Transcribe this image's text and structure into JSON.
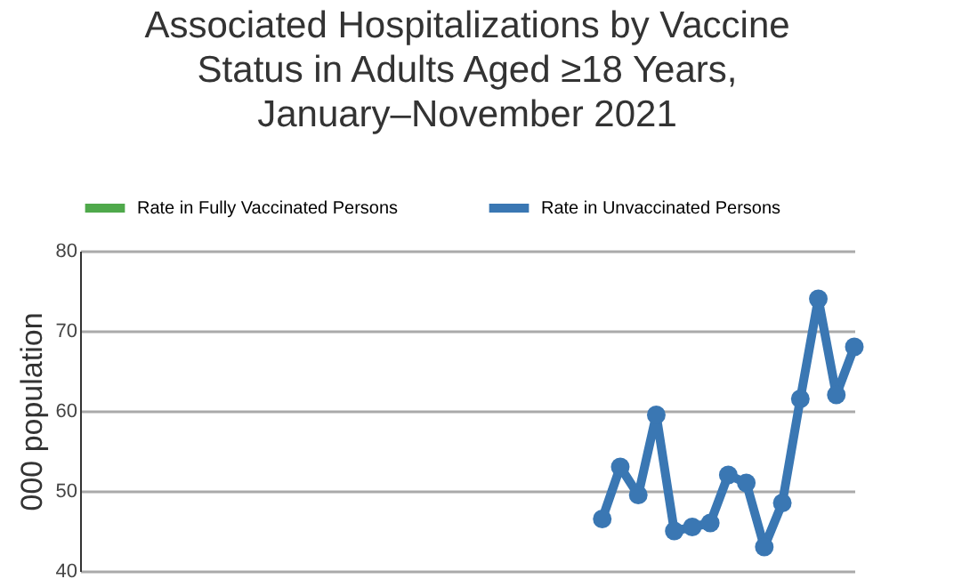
{
  "chart_data": {
    "type": "line",
    "title": "Associated Hospitalizations by Vaccine Status in Adults Aged ≥18 Years, January–November 2021",
    "ylabel": "000 population",
    "categories": [
      null,
      null,
      null,
      null,
      null,
      null,
      null,
      null,
      null,
      null,
      null,
      null,
      null,
      null,
      null,
      null,
      null,
      null,
      null,
      null,
      null,
      null,
      null,
      null,
      null,
      null,
      null,
      null,
      null,
      null,
      null,
      null,
      null,
      null,
      null,
      null,
      null,
      null,
      null,
      null,
      null,
      null,
      null,
      null
    ],
    "series": [
      {
        "name": "Rate in Fully Vaccinated Persons",
        "color": "#4fa94b",
        "values": [
          null,
          null,
          null,
          null,
          null,
          null,
          null,
          null,
          null,
          null,
          null,
          null,
          null,
          null,
          null,
          null,
          null,
          null,
          null,
          null,
          null,
          null,
          null,
          null,
          null,
          null,
          null,
          null,
          null,
          null,
          null,
          null,
          null,
          null,
          null,
          null,
          null,
          null,
          null,
          null,
          null,
          null,
          null,
          null
        ]
      },
      {
        "name": "Rate in Unvaccinated Persons",
        "color": "#3a77b3",
        "values": [
          null,
          null,
          null,
          null,
          null,
          null,
          null,
          null,
          null,
          null,
          null,
          null,
          null,
          null,
          null,
          null,
          null,
          null,
          null,
          null,
          null,
          null,
          null,
          null,
          null,
          null,
          null,
          null,
          null,
          46.5,
          53,
          49.5,
          59.5,
          45,
          45.5,
          46,
          52,
          51,
          43,
          48.5,
          61.5,
          74,
          62,
          68
        ]
      }
    ],
    "ylim": [
      40,
      80
    ],
    "yticks": [
      40,
      50,
      60,
      70,
      80
    ],
    "grid": "y",
    "legend": "top left",
    "marker": "circle",
    "line_style": "solid",
    "tick_labels": "y"
  }
}
